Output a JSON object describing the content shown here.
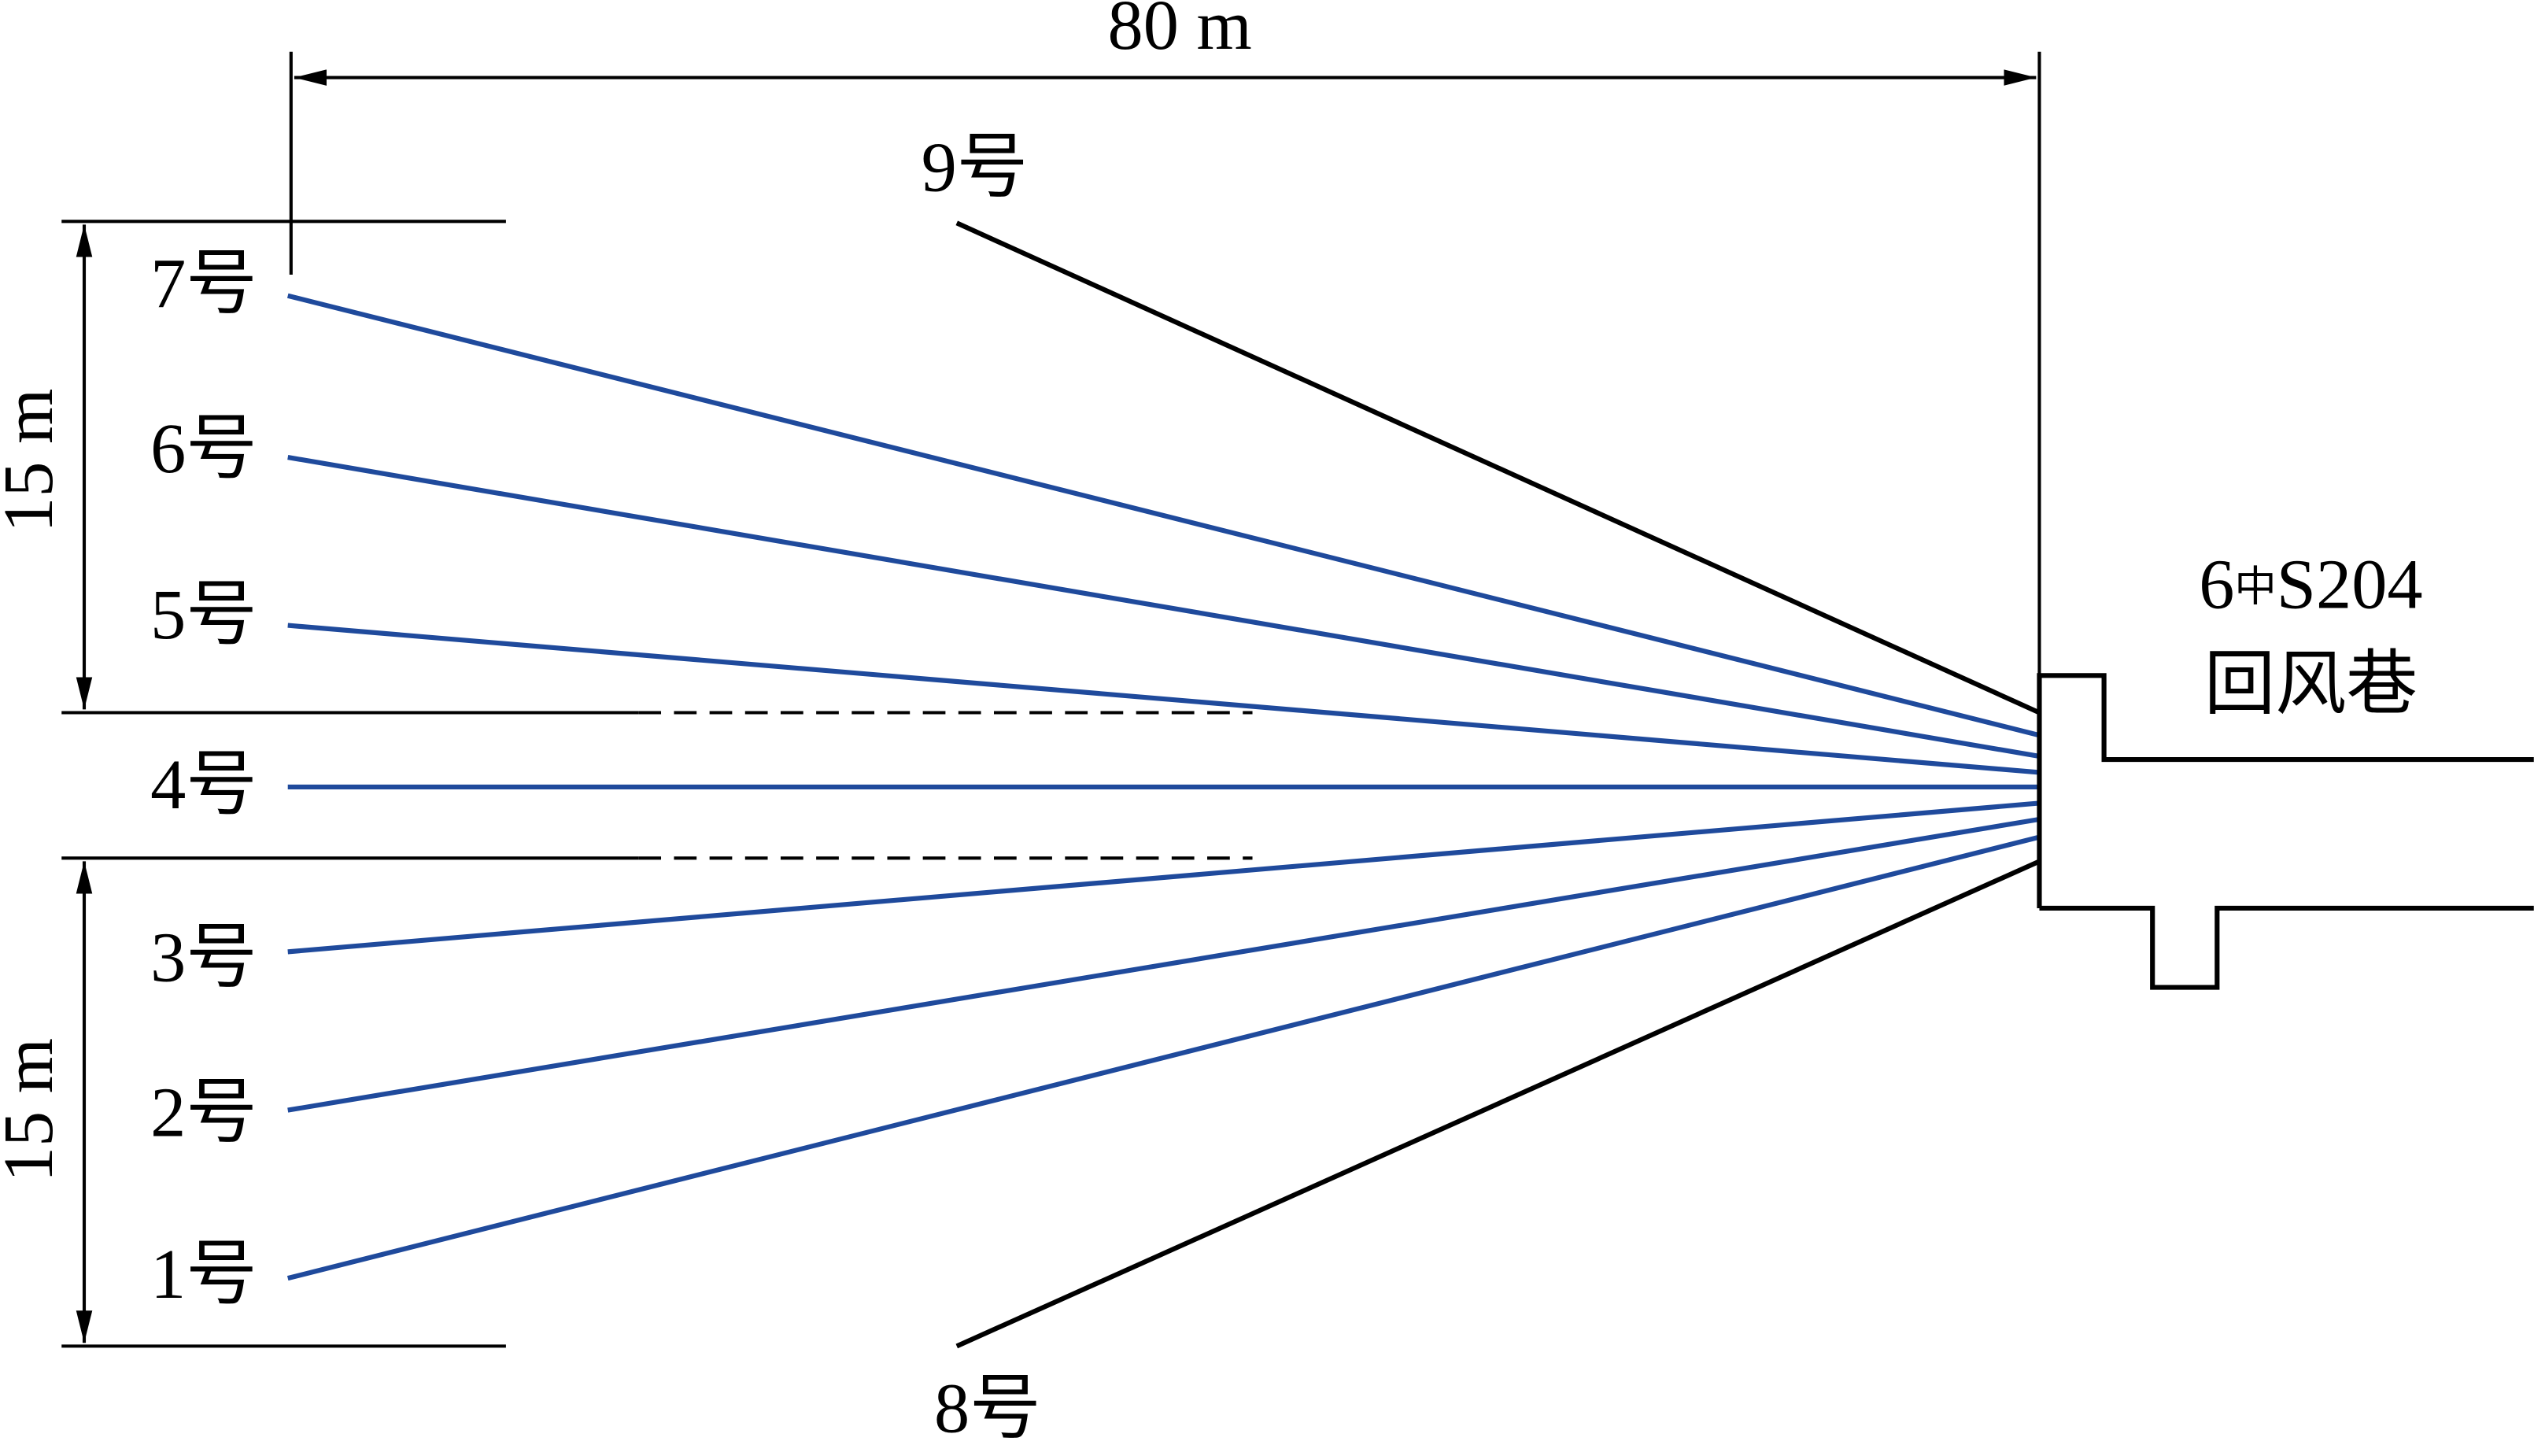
{
  "dimensions": {
    "length": "80 m",
    "upper_width": "15 m",
    "lower_width": "15 m"
  },
  "boreholes": {
    "labels": [
      "1号",
      "2号",
      "3号",
      "4号",
      "5号",
      "6号",
      "7号",
      "8号",
      "9号"
    ]
  },
  "roadway": {
    "line1": [
      "6",
      "中",
      "S204"
    ],
    "line2": "回风巷"
  }
}
